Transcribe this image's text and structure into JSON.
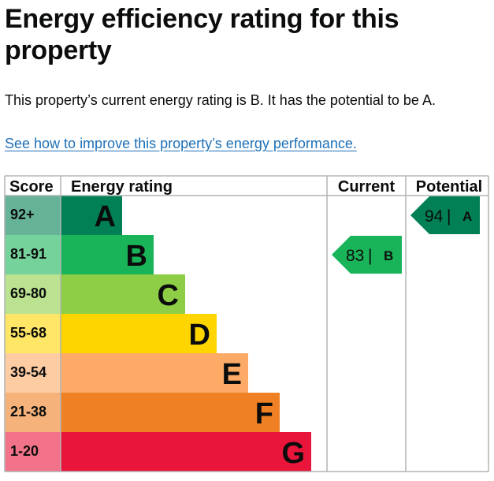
{
  "heading": "Energy efficiency rating for this property",
  "summary": "This property’s current energy rating is B. It has the potential to be A.",
  "improve_link": "See how to improve this property’s energy performance.",
  "table": {
    "col_score": "Score",
    "col_rating": "Energy rating",
    "col_current": "Current",
    "col_potential": "Potential"
  },
  "bands": [
    {
      "score": "92+",
      "letter": "A",
      "color": "#008054",
      "score_bg": "#66b398",
      "letter_color": "#0b0c0c"
    },
    {
      "score": "81-91",
      "letter": "B",
      "color": "#19b459",
      "score_bg": "#75d29b",
      "letter_color": "#0b0c0c"
    },
    {
      "score": "69-80",
      "letter": "C",
      "color": "#8dce46",
      "score_bg": "#bbe290",
      "letter_color": "#0b0c0c"
    },
    {
      "score": "55-68",
      "letter": "D",
      "color": "#ffd500",
      "score_bg": "#ffe666",
      "letter_color": "#0b0c0c"
    },
    {
      "score": "39-54",
      "letter": "E",
      "color": "#fcaa65",
      "score_bg": "#fdcca3",
      "letter_color": "#0b0c0c"
    },
    {
      "score": "21-38",
      "letter": "F",
      "color": "#ef8023",
      "score_bg": "#f5b37b",
      "letter_color": "#0b0c0c"
    },
    {
      "score": "1-20",
      "letter": "G",
      "color": "#e9153b",
      "score_bg": "#f27389",
      "letter_color": "#0b0c0c"
    }
  ],
  "current": {
    "score": "83",
    "separator": "|",
    "letter": "B",
    "band_index": 1,
    "color": "#19b459"
  },
  "potential": {
    "score": "94",
    "separator": "|",
    "letter": "A",
    "band_index": 0,
    "color": "#008054"
  }
}
